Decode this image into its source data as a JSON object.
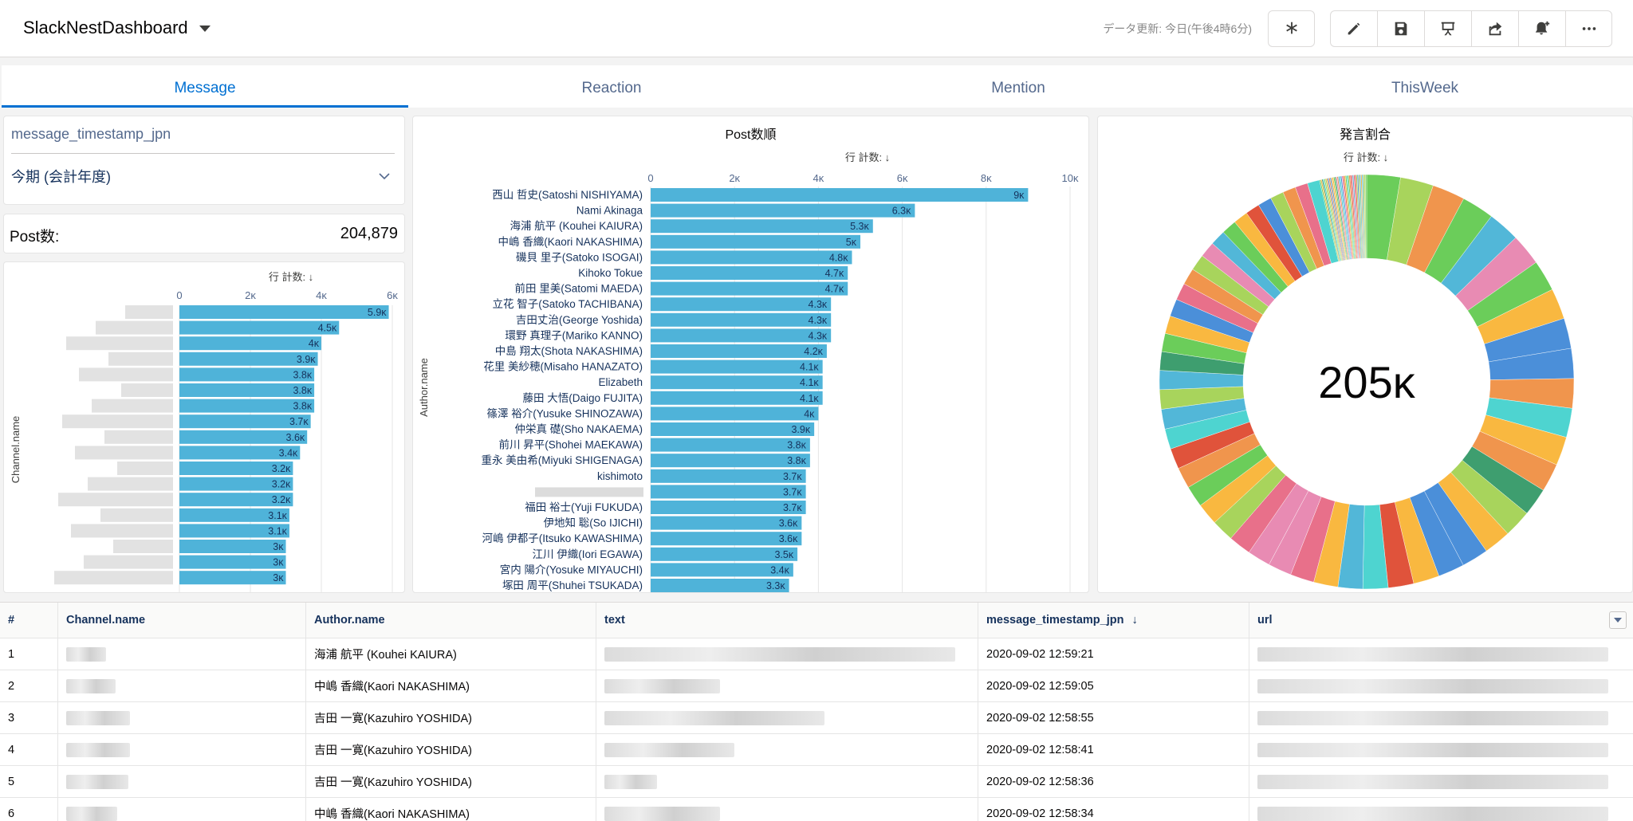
{
  "header": {
    "title": "SlackNestDashboard",
    "refresh": "データ更新: 今日(午後4時6分)"
  },
  "tabs": [
    {
      "label": "Message",
      "active": true
    },
    {
      "label": "Reaction",
      "active": false
    },
    {
      "label": "Mention",
      "active": false
    },
    {
      "label": "ThisWeek",
      "active": false
    }
  ],
  "filter": {
    "field": "message_timestamp_jpn",
    "value": "今期 (会計年度)"
  },
  "metric": {
    "label": "Post数:",
    "value": "204,879"
  },
  "charts": {
    "channel": {
      "sort_label": "行 計数: ↓",
      "axis_title": "Channel.name"
    },
    "author": {
      "title": "Post数順",
      "sort_label": "行 計数: ↓",
      "axis_title": "Author.name"
    },
    "pie": {
      "title": "発言割合",
      "sort_label": "行 計数: ↓",
      "center": "205ĸ"
    }
  },
  "chart_data": [
    {
      "type": "bar",
      "orientation": "horizontal",
      "title": "",
      "xlabel": "行 計数: ↓",
      "ylabel": "Channel.name",
      "xlim": [
        0,
        6000
      ],
      "xticks": [
        "0",
        "2ĸ",
        "4ĸ",
        "6ĸ"
      ],
      "categories": [],
      "values": [
        5900,
        4500,
        4000,
        3900,
        3800,
        3800,
        3800,
        3700,
        3600,
        3400,
        3200,
        3200,
        3200,
        3100,
        3100,
        3000,
        3000,
        3000
      ],
      "labels": [
        "5.9ĸ",
        "4.5ĸ",
        "4ĸ",
        "3.9ĸ",
        "3.8ĸ",
        "3.8ĸ",
        "3.8ĸ",
        "3.7ĸ",
        "3.6ĸ",
        "3.4ĸ",
        "3.2ĸ",
        "3.2ĸ",
        "3.2ĸ",
        "3.1ĸ",
        "3.1ĸ",
        "3ĸ",
        "3ĸ",
        "3ĸ"
      ]
    },
    {
      "type": "bar",
      "orientation": "horizontal",
      "title": "Post数順",
      "xlabel": "行 計数: ↓",
      "ylabel": "Author.name",
      "xlim": [
        0,
        10000
      ],
      "xticks": [
        "0",
        "2ĸ",
        "4ĸ",
        "6ĸ",
        "8ĸ",
        "10ĸ"
      ],
      "categories": [
        "西山 哲史(Satoshi NISHIYAMA)",
        "Nami Akinaga",
        "海浦 航平 (Kouhei KAIURA)",
        "中嶋 香織(Kaori NAKASHIMA)",
        "磯貝 里子(Satoko ISOGAI)",
        "Kihoko Tokue",
        "前田 里美(Satomi MAEDA)",
        "立花 智子(Satoko TACHIBANA)",
        "吉田丈治(George Yoshida)",
        "環野 真理子(Mariko KANNO)",
        "中島 翔太(Shota NAKASHIMA)",
        "花里 美紗穂(Misaho HANAZATO)",
        "Elizabeth",
        "藤田 大悟(Daigo FUJITA)",
        "篠澤 裕介(Yusuke SHINOZAWA)",
        "仲栄真 礎(Sho NAKAEMA)",
        "前川 昇平(Shohei MAEKAWA)",
        "重永 美由希(Miyuki SHIGENAGA)",
        "kishimoto",
        "",
        "福田 裕士(Yuji FUKUDA)",
        "伊地知 聡(So IJICHI)",
        "河嶋 伊都子(Itsuko KAWASHIMA)",
        "江川 伊織(Iori EGAWA)",
        "宮内 陽介(Yosuke MIYAUCHI)",
        "塚田 周平(Shuhei TSUKADA)"
      ],
      "values": [
        9000,
        6300,
        5300,
        5000,
        4800,
        4700,
        4700,
        4300,
        4300,
        4300,
        4200,
        4100,
        4100,
        4100,
        4000,
        3900,
        3800,
        3800,
        3700,
        3700,
        3700,
        3600,
        3600,
        3500,
        3400,
        3300
      ],
      "labels": [
        "9ĸ",
        "6.3ĸ",
        "5.3ĸ",
        "5ĸ",
        "4.8ĸ",
        "4.7ĸ",
        "4.7ĸ",
        "4.3ĸ",
        "4.3ĸ",
        "4.3ĸ",
        "4.2ĸ",
        "4.1ĸ",
        "4.1ĸ",
        "4.1ĸ",
        "4ĸ",
        "3.9ĸ",
        "3.8ĸ",
        "3.8ĸ",
        "3.7ĸ",
        "3.7ĸ",
        "3.7ĸ",
        "3.6ĸ",
        "3.6ĸ",
        "3.5ĸ",
        "3.4ĸ",
        "3.3ĸ"
      ]
    },
    {
      "type": "pie",
      "variant": "donut",
      "title": "発言割合",
      "center_label": "205ĸ",
      "total": 204879,
      "slice_colors": [
        "#6bcd5a",
        "#a8d45c",
        "#f0954d",
        "#6bcd5a",
        "#52b7d8",
        "#e88bb3",
        "#6bcd5a",
        "#f9b840",
        "#4b8fd9",
        "#4b8fd9",
        "#f0954d",
        "#4ed4d0",
        "#f9b840",
        "#f0954d",
        "#3e9e6f",
        "#a8d45c",
        "#f9b840",
        "#4b8fd9",
        "#4b8fd9",
        "#f9b840",
        "#e0533b",
        "#4ed4d0",
        "#52b7d8",
        "#f9b840",
        "#e8708a",
        "#e88bb3",
        "#e88bb3",
        "#e8708a",
        "#a8d45c",
        "#f9b840",
        "#6bcd5a",
        "#f0954d",
        "#e0533b",
        "#4ed4d0",
        "#52b7d8",
        "#a8d45c",
        "#52b7d8",
        "#3e9e6f",
        "#6bcd5a",
        "#f9b840",
        "#4b8fd9",
        "#e8708a",
        "#f0954d",
        "#a8d45c",
        "#e88bb3",
        "#52b7d8",
        "#6bcd5a",
        "#f9b840",
        "#e0533b",
        "#4b8fd9",
        "#a8d45c",
        "#f0954d",
        "#e8708a",
        "#4ed4d0"
      ]
    }
  ],
  "table": {
    "columns": [
      "#",
      "Channel.name",
      "Author.name",
      "text",
      "message_timestamp_jpn",
      "url"
    ],
    "sort_arrow": "↓",
    "rows": [
      {
        "n": "1",
        "author": "海浦 航平 (Kouhei KAIURA)",
        "ts": "2020-09-02 12:59:21"
      },
      {
        "n": "2",
        "author": "中嶋 香織(Kaori NAKASHIMA)",
        "ts": "2020-09-02 12:59:05"
      },
      {
        "n": "3",
        "author": "吉田 一寛(Kazuhiro YOSHIDA)",
        "ts": "2020-09-02 12:58:55"
      },
      {
        "n": "4",
        "author": "吉田 一寛(Kazuhiro YOSHIDA)",
        "ts": "2020-09-02 12:58:41"
      },
      {
        "n": "5",
        "author": "吉田 一寛(Kazuhiro YOSHIDA)",
        "ts": "2020-09-02 12:58:36"
      },
      {
        "n": "6",
        "author": "中嶋 香織(Kaori NAKASHIMA)",
        "ts": "2020-09-02 12:58:34"
      }
    ]
  },
  "icons": {
    "toolbar": [
      "asterisk-icon",
      "edit-icon",
      "save-icon",
      "present-icon",
      "share-icon",
      "subscribe-icon",
      "more-icon"
    ],
    "accent": "#0070d2",
    "bar_color": "#4fb3d9"
  }
}
